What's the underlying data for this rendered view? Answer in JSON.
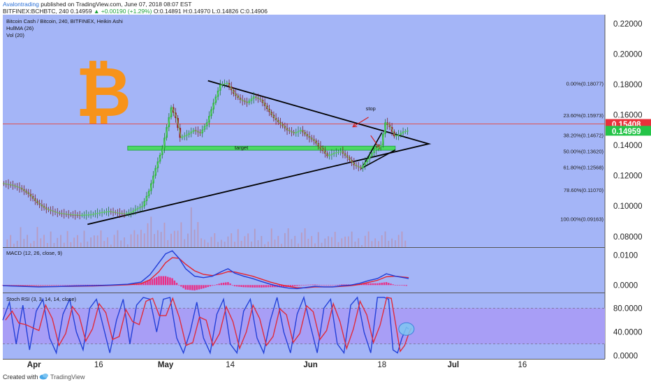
{
  "header": {
    "author": "Avalontrading",
    "published": "published on TradingView.com, June 07, 2018 08:07 EST",
    "symbol": "BITFINEX:BCHBTC, 240",
    "price": "0.14959",
    "change": "▲ +0.00190 (+1.29%)",
    "ohlc": "O:0.14891 H:0.14970 L:0.14826 C:0.14906"
  },
  "legend": {
    "title": "Bitcoin Cash / Bitcoin, 240, BITFINEX, Heikin Ashi",
    "hull": "HullMA (26)",
    "vol": "Vol (20)"
  },
  "footer": {
    "created": "Created with",
    "brand": "TradingView"
  },
  "colors": {
    "bg": "#a4b5f7",
    "stochBand": "#a89ef6",
    "upCandle": "#2db34a",
    "downCandle": "#9b1c1c",
    "resistance": "#e05050",
    "targetZone": "#4cd964",
    "bitcoin": "#f7931a",
    "macd": "#1f3bd6",
    "signal": "#e8202a",
    "histogram": "#f0207a"
  },
  "icons": [
    "bitcoin-logo",
    "tradingview-logo"
  ],
  "chart_data": [
    {
      "type": "candlestick",
      "title": "Bitcoin Cash / Bitcoin, 240, BITFINEX, Heikin Ashi",
      "x_ticks": [
        "Apr",
        "16",
        "May",
        "14",
        "Jun",
        "18",
        "Jul",
        "16"
      ],
      "y_ticks": [
        "0.22000",
        "0.20000",
        "0.18000",
        "0.16000",
        "0.14000",
        "0.12000",
        "0.10000",
        "0.08000"
      ],
      "ylim": [
        0.073,
        0.226
      ],
      "last_price": "0.14959",
      "resistance_level": "0.15408",
      "fibonacci": [
        {
          "label": "0.00%(0.18077)",
          "level": 0.18077
        },
        {
          "label": "23.60%(0.15973)",
          "level": 0.15973
        },
        {
          "label": "38.20%(0.14672)",
          "level": 0.14672
        },
        {
          "label": "50.00%(0.13620)",
          "level": 0.1362
        },
        {
          "label": "61.80%(0.12568)",
          "level": 0.12568
        },
        {
          "label": "78.60%(0.11070)",
          "level": 0.1107
        },
        {
          "label": "100.00%(0.09163)",
          "level": 0.09163
        }
      ],
      "annotations": {
        "stop": "stop",
        "target": "target"
      },
      "price_path": [
        [
          0,
          0.115
        ],
        [
          4,
          0.114
        ],
        [
          8,
          0.112
        ],
        [
          12,
          0.108
        ],
        [
          16,
          0.102
        ],
        [
          20,
          0.098
        ],
        [
          25,
          0.0955
        ],
        [
          30,
          0.0945
        ],
        [
          35,
          0.094
        ],
        [
          40,
          0.0945
        ],
        [
          45,
          0.096
        ],
        [
          48,
          0.0965
        ],
        [
          52,
          0.0955
        ],
        [
          55,
          0.095
        ],
        [
          58,
          0.096
        ],
        [
          60,
          0.098
        ],
        [
          63,
          0.1
        ],
        [
          66,
          0.11
        ],
        [
          69,
          0.125
        ],
        [
          72,
          0.138
        ],
        [
          74,
          0.152
        ],
        [
          76,
          0.165
        ],
        [
          78,
          0.158
        ],
        [
          80,
          0.145
        ],
        [
          83,
          0.147
        ],
        [
          86,
          0.15
        ],
        [
          89,
          0.148
        ],
        [
          92,
          0.155
        ],
        [
          95,
          0.168
        ],
        [
          98,
          0.18
        ],
        [
          101,
          0.181
        ],
        [
          104,
          0.174
        ],
        [
          107,
          0.17
        ],
        [
          110,
          0.168
        ],
        [
          113,
          0.172
        ],
        [
          116,
          0.17
        ],
        [
          119,
          0.164
        ],
        [
          122,
          0.158
        ],
        [
          125,
          0.154
        ],
        [
          128,
          0.15
        ],
        [
          131,
          0.148
        ],
        [
          134,
          0.15
        ],
        [
          137,
          0.146
        ],
        [
          140,
          0.143
        ],
        [
          143,
          0.138
        ],
        [
          146,
          0.133
        ],
        [
          149,
          0.135
        ],
        [
          152,
          0.136
        ],
        [
          155,
          0.132
        ],
        [
          158,
          0.127
        ],
        [
          161,
          0.125
        ],
        [
          164,
          0.131
        ],
        [
          167,
          0.137
        ],
        [
          170,
          0.14
        ],
        [
          172,
          0.155
        ],
        [
          174,
          0.152
        ],
        [
          176,
          0.146
        ],
        [
          178,
          0.147
        ],
        [
          180,
          0.149
        ],
        [
          182,
          0.1496
        ]
      ],
      "x_range": [
        0,
        270
      ]
    },
    {
      "type": "line",
      "title": "MACD (12, 26, close, 9)",
      "y_ticks": [
        "0.0100",
        "0.0000"
      ],
      "ylim": [
        -0.0025,
        0.0125
      ],
      "series": [
        {
          "name": "MACD",
          "values": [
            [
              0,
              -0.0002
            ],
            [
              8,
              -0.0004
            ],
            [
              16,
              -0.0006
            ],
            [
              24,
              -0.0005
            ],
            [
              32,
              -0.0003
            ],
            [
              40,
              -0.0002
            ],
            [
              48,
              0.0
            ],
            [
              56,
              0.0003
            ],
            [
              62,
              0.001
            ],
            [
              66,
              0.0035
            ],
            [
              70,
              0.0075
            ],
            [
              73,
              0.0105
            ],
            [
              76,
              0.0115
            ],
            [
              79,
              0.009
            ],
            [
              82,
              0.0055
            ],
            [
              86,
              0.003
            ],
            [
              90,
              0.0025
            ],
            [
              94,
              0.003
            ],
            [
              98,
              0.0045
            ],
            [
              101,
              0.0055
            ],
            [
              104,
              0.004
            ],
            [
              108,
              0.003
            ],
            [
              112,
              0.0022
            ],
            [
              116,
              0.0012
            ],
            [
              120,
              0.0003
            ],
            [
              124,
              -0.0005
            ],
            [
              128,
              -0.001
            ],
            [
              132,
              -0.0012
            ],
            [
              136,
              -0.0008
            ],
            [
              140,
              -0.0004
            ],
            [
              144,
              -0.0006
            ],
            [
              148,
              -0.0006
            ],
            [
              152,
              -0.0002
            ],
            [
              156,
              0.0
            ],
            [
              160,
              0.0006
            ],
            [
              164,
              0.0015
            ],
            [
              168,
              0.0022
            ],
            [
              172,
              0.0038
            ],
            [
              176,
              0.003
            ],
            [
              182,
              0.0022
            ]
          ]
        },
        {
          "name": "Signal",
          "values": [
            [
              0,
              -0.0002
            ],
            [
              8,
              -0.0003
            ],
            [
              16,
              -0.0005
            ],
            [
              24,
              -0.0005
            ],
            [
              32,
              -0.0004
            ],
            [
              40,
              -0.0003
            ],
            [
              48,
              -0.0001
            ],
            [
              56,
              0.0001
            ],
            [
              62,
              0.0005
            ],
            [
              66,
              0.0018
            ],
            [
              70,
              0.0045
            ],
            [
              73,
              0.0075
            ],
            [
              76,
              0.0092
            ],
            [
              79,
              0.009
            ],
            [
              82,
              0.007
            ],
            [
              86,
              0.0048
            ],
            [
              90,
              0.0036
            ],
            [
              94,
              0.0032
            ],
            [
              98,
              0.0038
            ],
            [
              101,
              0.0045
            ],
            [
              104,
              0.0044
            ],
            [
              108,
              0.0037
            ],
            [
              112,
              0.003
            ],
            [
              116,
              0.002
            ],
            [
              120,
              0.001
            ],
            [
              124,
              0.0002
            ],
            [
              128,
              -0.0004
            ],
            [
              132,
              -0.0009
            ],
            [
              136,
              -0.0009
            ],
            [
              140,
              -0.0006
            ],
            [
              144,
              -0.0006
            ],
            [
              148,
              -0.0006
            ],
            [
              152,
              -0.0004
            ],
            [
              156,
              -0.0002
            ],
            [
              160,
              0.0002
            ],
            [
              164,
              0.0009
            ],
            [
              168,
              0.0016
            ],
            [
              172,
              0.0028
            ],
            [
              176,
              0.003
            ],
            [
              182,
              0.0025
            ]
          ]
        }
      ]
    },
    {
      "type": "line",
      "title": "Stoch RSI (3, 3, 14, 14, close)",
      "y_ticks": [
        "80.0000",
        "40.0000",
        "0.0000"
      ],
      "band": [
        20,
        80
      ],
      "ylim": [
        -5,
        105
      ],
      "series": [
        {
          "name": "K",
          "values": [
            [
              0,
              60
            ],
            [
              3,
              90
            ],
            [
              6,
              20
            ],
            [
              9,
              85
            ],
            [
              12,
              10
            ],
            [
              15,
              75
            ],
            [
              18,
              95
            ],
            [
              21,
              30
            ],
            [
              24,
              5
            ],
            [
              27,
              70
            ],
            [
              30,
              95
            ],
            [
              33,
              40
            ],
            [
              36,
              10
            ],
            [
              39,
              80
            ],
            [
              42,
              95
            ],
            [
              45,
              50
            ],
            [
              48,
              5
            ],
            [
              51,
              60
            ],
            [
              54,
              95
            ],
            [
              57,
              20
            ],
            [
              60,
              85
            ],
            [
              63,
              98
            ],
            [
              66,
              95
            ],
            [
              69,
              40
            ],
            [
              72,
              95
            ],
            [
              75,
              98
            ],
            [
              78,
              30
            ],
            [
              81,
              5
            ],
            [
              84,
              40
            ],
            [
              87,
              90
            ],
            [
              90,
              30
            ],
            [
              93,
              5
            ],
            [
              96,
              70
            ],
            [
              99,
              95
            ],
            [
              102,
              20
            ],
            [
              105,
              5
            ],
            [
              108,
              75
            ],
            [
              111,
              95
            ],
            [
              114,
              30
            ],
            [
              117,
              5
            ],
            [
              120,
              60
            ],
            [
              123,
              98
            ],
            [
              126,
              40
            ],
            [
              129,
              5
            ],
            [
              132,
              70
            ],
            [
              135,
              98
            ],
            [
              138,
              50
            ],
            [
              141,
              5
            ],
            [
              144,
              80
            ],
            [
              147,
              95
            ],
            [
              150,
              20
            ],
            [
              153,
              5
            ],
            [
              156,
              85
            ],
            [
              159,
              98
            ],
            [
              162,
              40
            ],
            [
              165,
              5
            ],
            [
              168,
              98
            ],
            [
              171,
              98
            ],
            [
              173,
              95
            ],
            [
              175,
              10
            ],
            [
              177,
              5
            ],
            [
              179,
              30
            ],
            [
              181,
              48
            ],
            [
              182,
              45
            ]
          ]
        }
      ]
    }
  ]
}
